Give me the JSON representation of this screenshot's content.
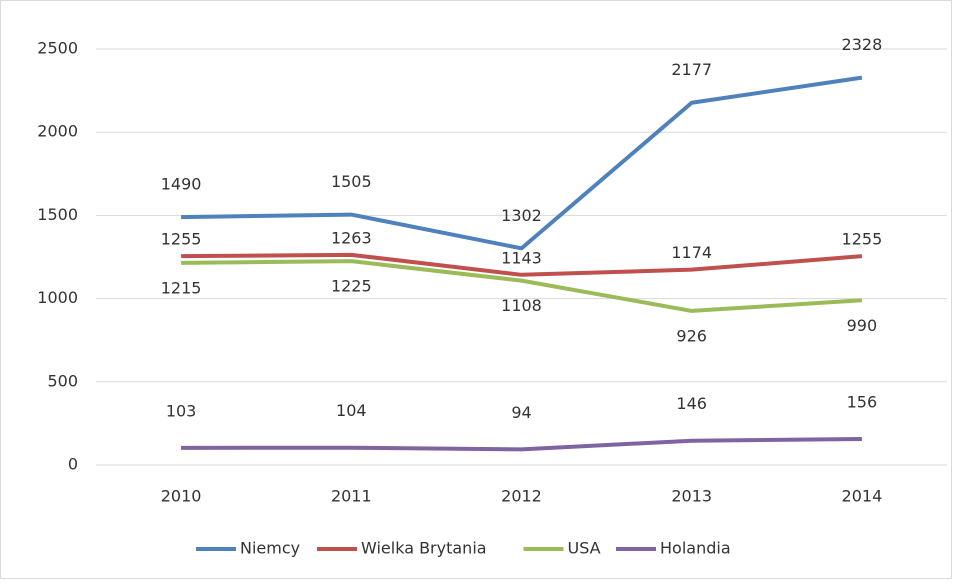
{
  "chart_data": {
    "type": "line",
    "categories": [
      "2010",
      "2011",
      "2012",
      "2013",
      "2014"
    ],
    "series": [
      {
        "name": "Niemcy",
        "color": "#4f81bd",
        "values": [
          1490,
          1505,
          1302,
          2177,
          2328
        ]
      },
      {
        "name": "Wielka Brytania",
        "color": "#c0504d",
        "values": [
          1255,
          1263,
          1143,
          1174,
          1255
        ]
      },
      {
        "name": "USA",
        "color": "#9bbb59",
        "values": [
          1215,
          1225,
          1108,
          926,
          990
        ]
      },
      {
        "name": "Holandia",
        "color": "#8064a2",
        "values": [
          103,
          104,
          94,
          146,
          156
        ]
      }
    ],
    "ylim": [
      0,
      2500
    ],
    "yticks": [
      0,
      500,
      1000,
      1500,
      2000,
      2500
    ],
    "grid": true,
    "legend": "bottom"
  }
}
